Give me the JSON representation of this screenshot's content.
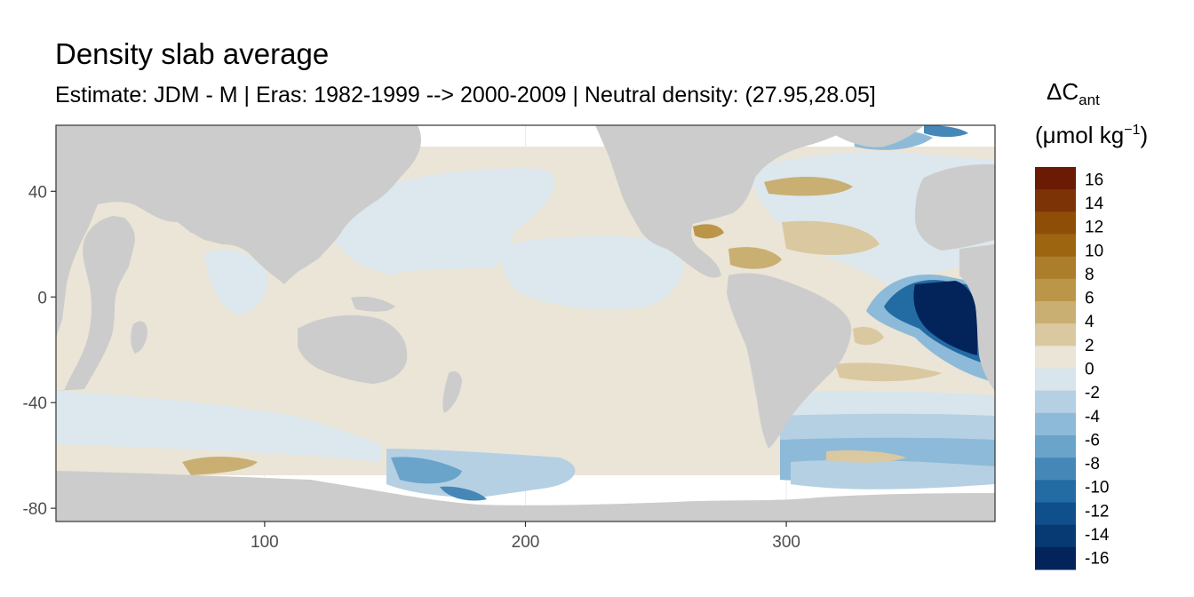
{
  "title": "Density slab average",
  "subtitle": "Estimate: JDM - M | Eras: 1982-1999 --> 2000-2009 | Neutral density: (27.95,28.05]",
  "legend": {
    "title_main": "ΔC",
    "title_sub": "ant",
    "unit_open": "(μmol kg",
    "unit_sup": "−1",
    "unit_close": ")",
    "labels": [
      "16",
      "14",
      "12",
      "10",
      "8",
      "6",
      "4",
      "2",
      "0",
      "-2",
      "-4",
      "-6",
      "-8",
      "-10",
      "-12",
      "-14",
      "-16"
    ],
    "colors": [
      "#6b1a04",
      "#7c3406",
      "#8f4e08",
      "#9d6510",
      "#ac7d2a",
      "#bb9648",
      "#c9af72",
      "#dac8a0",
      "#ebe5d7",
      "#d8e5ec",
      "#b5d0e2",
      "#8dbad8",
      "#6aa4cb",
      "#4588b8",
      "#236ba3",
      "#0f4f8b",
      "#073a72",
      "#02245a"
    ]
  },
  "chart_data": {
    "type": "heatmap",
    "title": "Density slab average",
    "subtitle": "Estimate: JDM - M | Eras: 1982-1999 --> 2000-2009 | Neutral density: (27.95,28.05]",
    "xlabel": "",
    "ylabel": "",
    "xlim": [
      20,
      380
    ],
    "ylim": [
      -85,
      65
    ],
    "x_ticks": [
      100,
      200,
      300
    ],
    "y_ticks": [
      40,
      0,
      -40,
      -80
    ],
    "colorbar_range": [
      -17,
      17
    ],
    "colorbar_step": 2,
    "grid": true,
    "legend_position": "right",
    "land_color": "#cccccc",
    "no_data_color": "#ffffff"
  }
}
